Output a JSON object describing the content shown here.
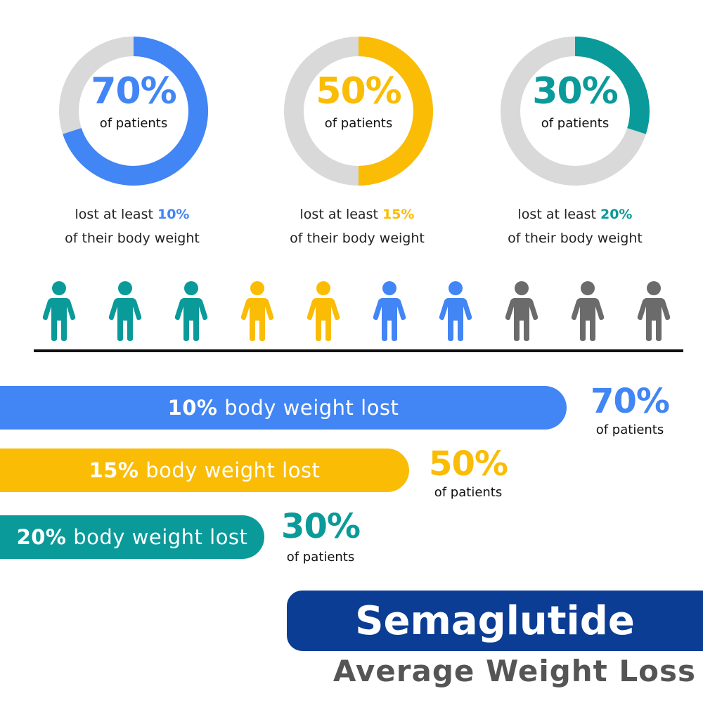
{
  "colors": {
    "blue": "#4285f4",
    "yellow": "#fbbc05",
    "teal": "#0b9a9a",
    "gray": "#6b6b6b",
    "track": "#d9d9d9",
    "navy": "#0c3d94"
  },
  "chart_data": [
    {
      "type": "pie",
      "categories": [
        "lost at least 10% of their body weight",
        "lost at least 15% of their body weight",
        "lost at least 20% of their body weight"
      ],
      "values": [
        70,
        50,
        30
      ],
      "unit": "% of patients"
    },
    {
      "type": "bar",
      "categories": [
        "10% body weight lost",
        "15% body weight lost",
        "20% body weight lost"
      ],
      "values": [
        70,
        50,
        30
      ],
      "unit": "% of patients"
    }
  ],
  "donuts": [
    {
      "pct": "70%",
      "sub": "of patients",
      "value": 70,
      "color": "#4285f4",
      "caption_pre": "lost at least ",
      "caption_hl": "10%",
      "caption_line2": "of their body weight"
    },
    {
      "pct": "50%",
      "sub": "of patients",
      "value": 50,
      "color": "#fbbc05",
      "caption_pre": "lost at least ",
      "caption_hl": "15%",
      "caption_line2": "of their body weight"
    },
    {
      "pct": "30%",
      "sub": "of patients",
      "value": 30,
      "color": "#0b9a9a",
      "caption_pre": "lost at least ",
      "caption_hl": "20%",
      "caption_line2": "of their body weight"
    }
  ],
  "people": [
    "teal",
    "teal",
    "teal",
    "yellow",
    "yellow",
    "blue",
    "blue",
    "gray",
    "gray",
    "gray"
  ],
  "bars": [
    {
      "pct_label": "10%",
      "text": " body weight lost",
      "value": 70,
      "color": "#4285f4",
      "side_pct": "70%",
      "side_sub": "of patients"
    },
    {
      "pct_label": "15%",
      "text": " body weight lost",
      "value": 50,
      "color": "#fbbc05",
      "side_pct": "50%",
      "side_sub": "of patients"
    },
    {
      "pct_label": "20%",
      "text": " body weight lost",
      "value": 30,
      "color": "#0b9a9a",
      "side_pct": "30%",
      "side_sub": "of patients"
    }
  ],
  "title": "Semaglutide",
  "subtitle": "Average Weight Loss"
}
